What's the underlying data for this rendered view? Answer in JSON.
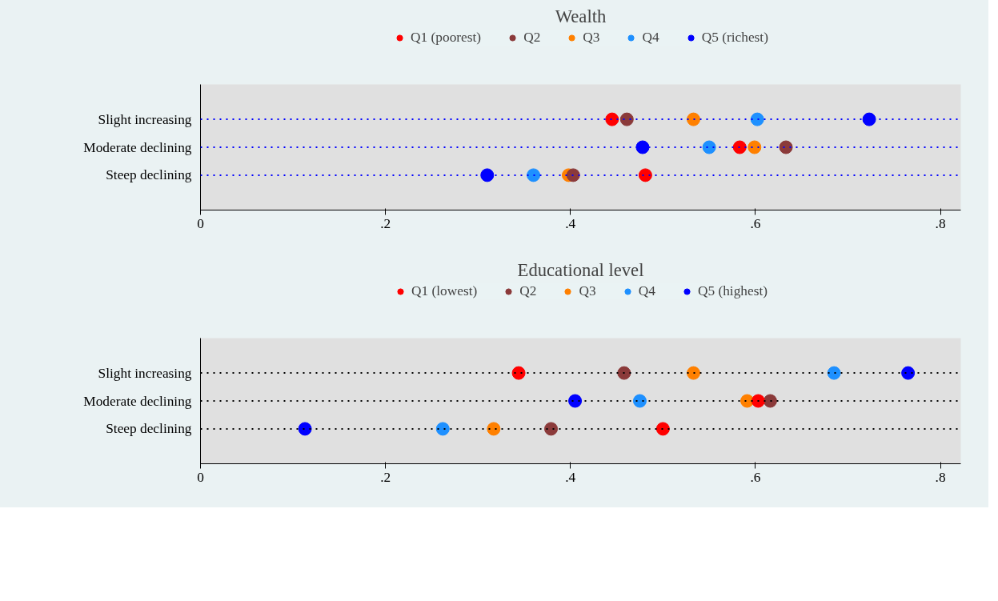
{
  "chart_data": [
    {
      "type": "scatter",
      "orientation": "horizontal",
      "title": "Wealth",
      "categories": [
        "Slight increasing",
        "Moderate declining",
        "Steep declining"
      ],
      "series": [
        {
          "name": "Q1 (poorest)",
          "color": "#ff0000",
          "values": [
            0.445,
            0.583,
            0.481
          ]
        },
        {
          "name": "Q2",
          "color": "#8b3a3a",
          "values": [
            0.461,
            0.633,
            0.403
          ]
        },
        {
          "name": "Q3",
          "color": "#ff8000",
          "values": [
            0.533,
            0.599,
            0.398
          ]
        },
        {
          "name": "Q4",
          "color": "#1e90ff",
          "values": [
            0.602,
            0.55,
            0.36
          ]
        },
        {
          "name": "Q5 (richest)",
          "color": "#0000ff",
          "values": [
            0.723,
            0.478,
            0.31
          ]
        }
      ],
      "xlim": [
        0,
        0.822
      ],
      "xticks": [
        0,
        {
          "value": 0.2,
          "label": ".2"
        },
        {
          "value": 0.4,
          "label": ".4"
        },
        {
          "value": 0.6,
          "label": ".6"
        },
        {
          "value": 0.8,
          "label": ".8"
        }
      ],
      "grid": "y",
      "legend": "top",
      "marker": "circle"
    },
    {
      "type": "scatter",
      "orientation": "horizontal",
      "title": "Educational level",
      "categories": [
        "Slight increasing",
        "Moderate declining",
        "Steep declining"
      ],
      "series": [
        {
          "name": "Q1 (lowest)",
          "color": "#ff0000",
          "values": [
            0.344,
            0.603,
            0.5
          ]
        },
        {
          "name": "Q2",
          "color": "#8b3a3a",
          "values": [
            0.458,
            0.616,
            0.379
          ]
        },
        {
          "name": "Q3",
          "color": "#ff8000",
          "values": [
            0.533,
            0.591,
            0.317
          ]
        },
        {
          "name": "Q4",
          "color": "#1e90ff",
          "values": [
            0.685,
            0.475,
            0.262
          ]
        },
        {
          "name": "Q5 (highest)",
          "color": "#0000ff",
          "values": [
            0.765,
            0.405,
            0.113
          ]
        }
      ],
      "xlim": [
        0,
        0.822
      ],
      "xticks": [
        0,
        {
          "value": 0.2,
          "label": ".2"
        },
        {
          "value": 0.4,
          "label": ".4"
        },
        {
          "value": 0.6,
          "label": ".6"
        },
        {
          "value": 0.8,
          "label": ".8"
        }
      ],
      "grid": "y",
      "legend": "top",
      "marker": "circle"
    }
  ]
}
